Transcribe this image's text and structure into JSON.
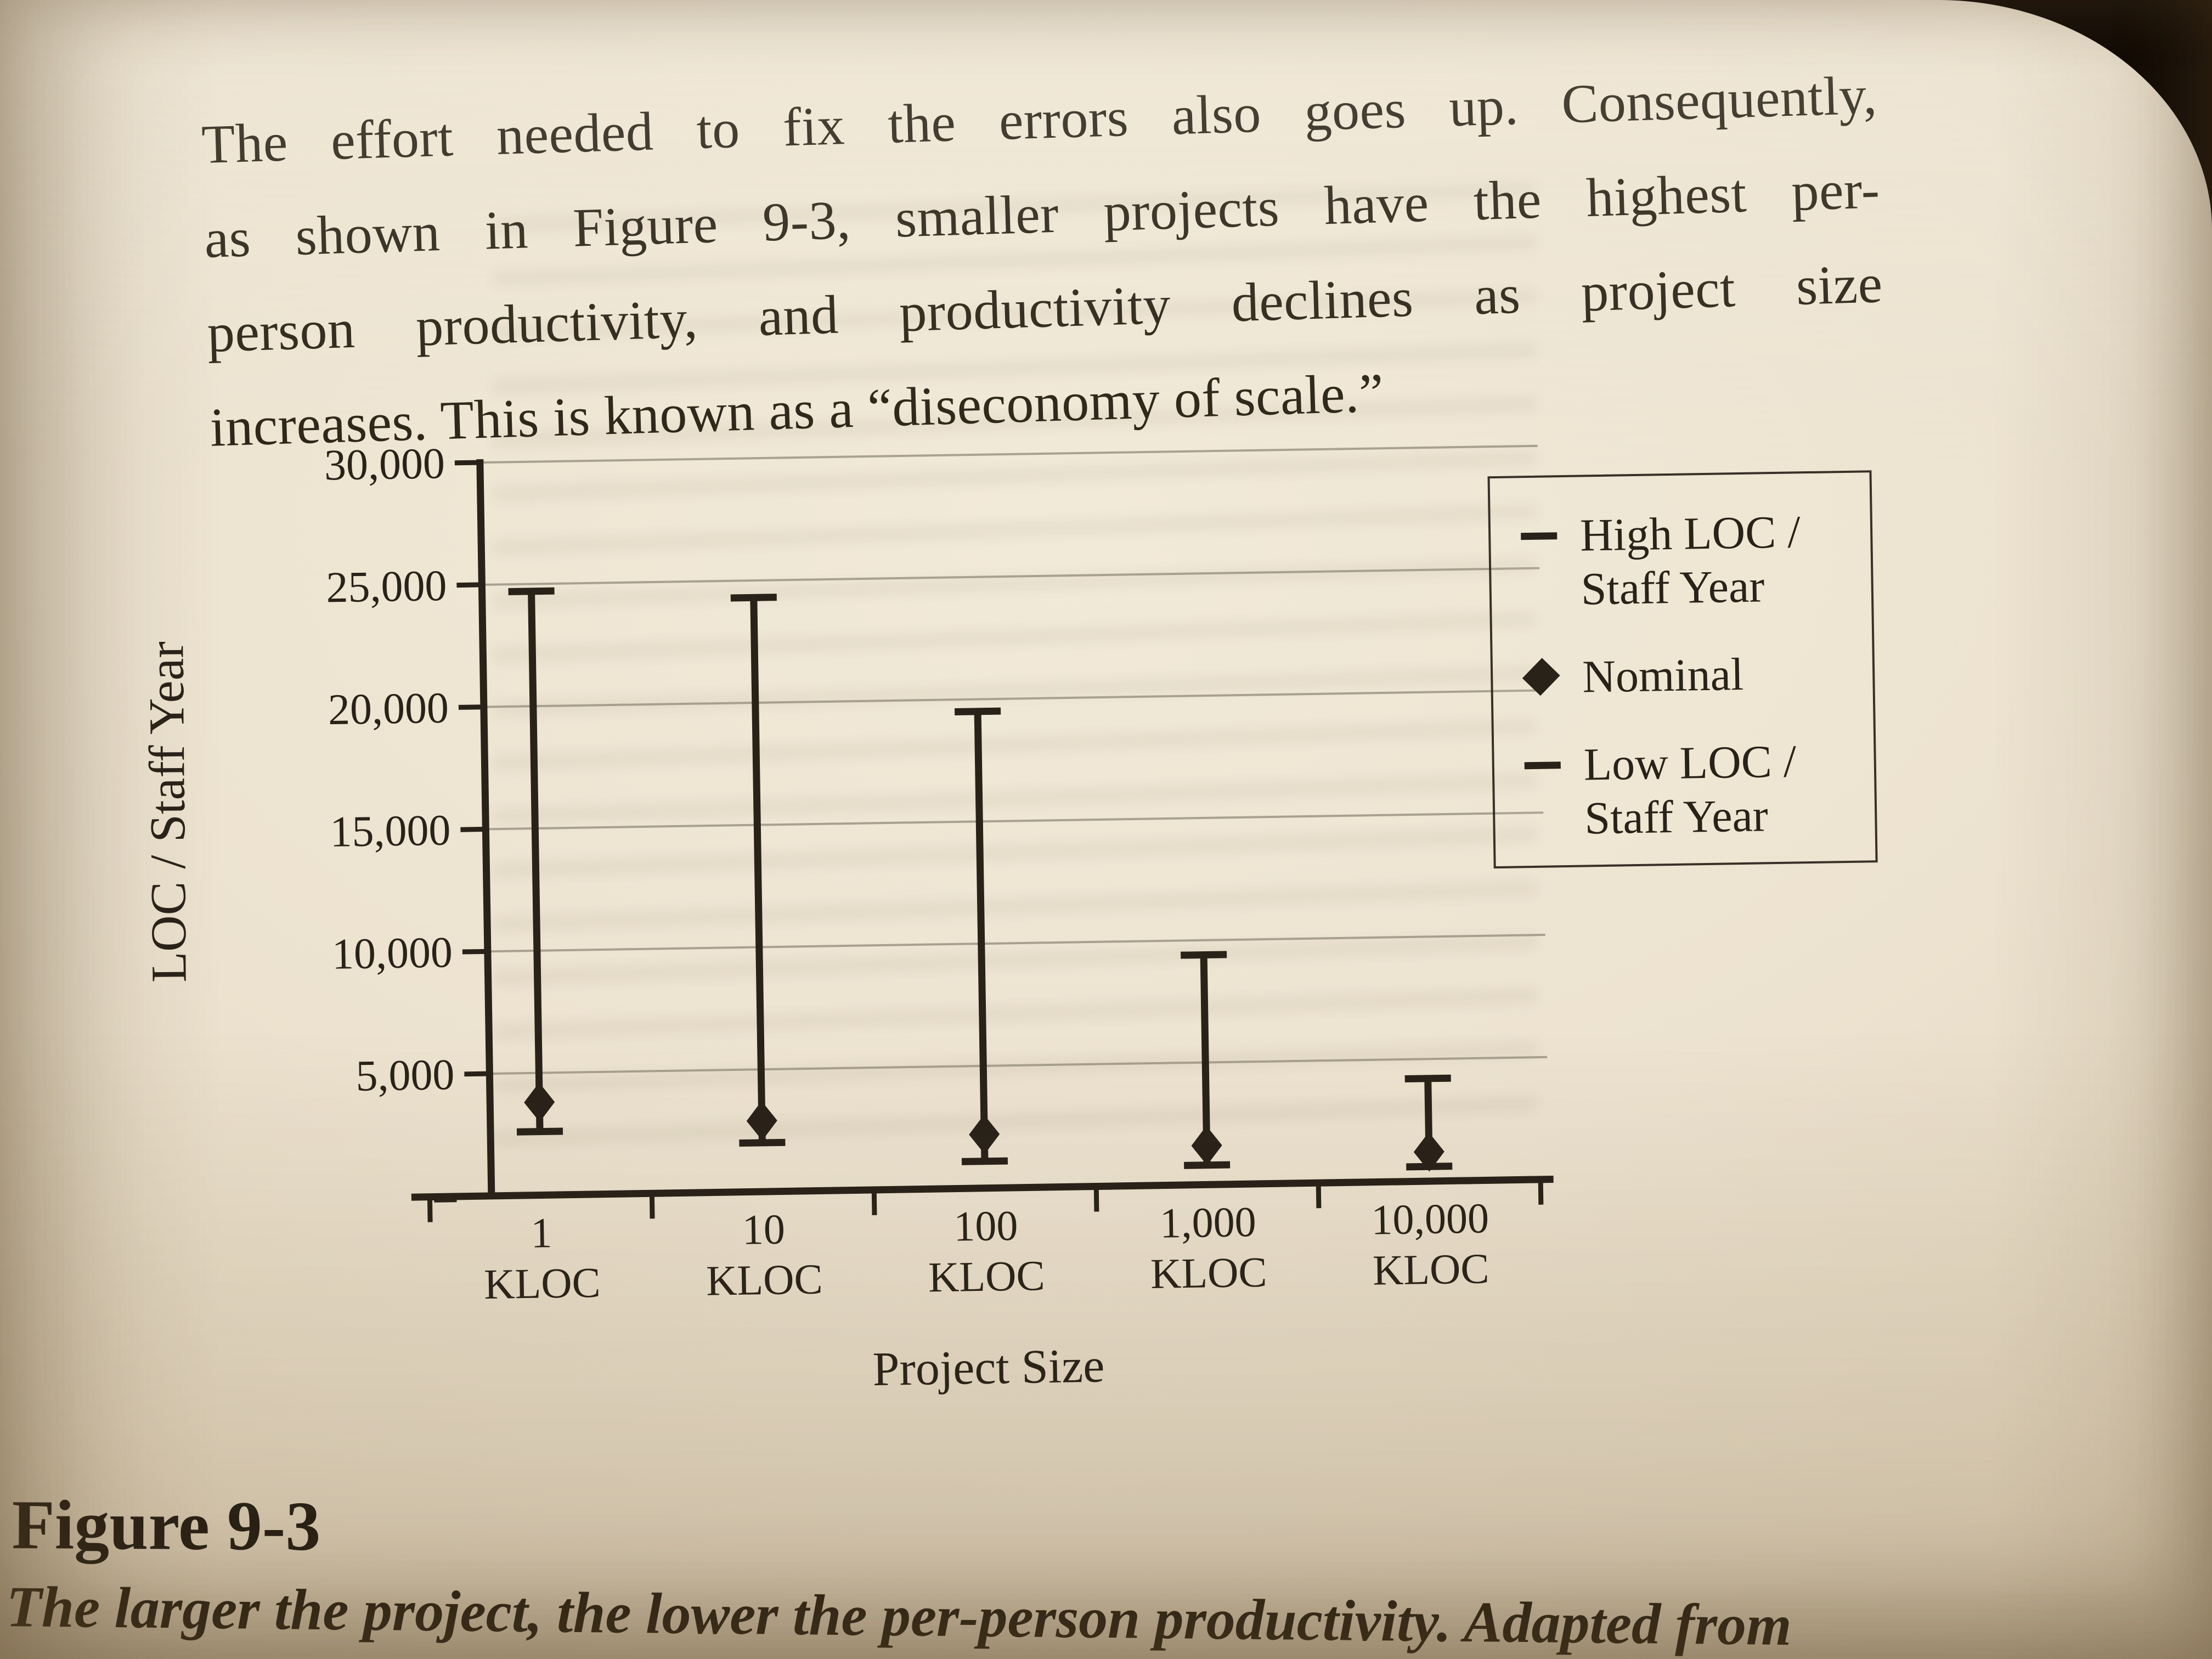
{
  "page": {
    "paragraph": {
      "lines": [
        "The effort needed to fix the errors also goes up. Consequently,",
        "as shown in Figure 9-3, smaller projects have the highest per-",
        "person productivity, and productivity declines as project size",
        "increases. This is known as a “diseconomy of scale.”"
      ]
    },
    "figure_label": "Figure 9-3",
    "caption": "The larger the project, the lower the per-person productivity. Adapted from"
  },
  "chart_data": {
    "type": "range-bar",
    "title": "",
    "xlabel": "Project Size",
    "ylabel": "LOC / Staff Year",
    "ylim": [
      0,
      30000
    ],
    "ytick_interval": 5000,
    "ytick_labels_top_to_bottom": [
      "30,000",
      "25,000",
      "20,000",
      "15,000",
      "10,000",
      "5,000",
      "–"
    ],
    "grid": true,
    "legend_position": "right",
    "categories": [
      [
        "1",
        "KLOC"
      ],
      [
        "10",
        "KLOC"
      ],
      [
        "100",
        "KLOC"
      ],
      [
        "1,000",
        "KLOC"
      ],
      [
        "10,000",
        "KLOC"
      ]
    ],
    "series": [
      {
        "name": "High LOC / Staff Year",
        "marker": "dash",
        "values": [
          24700,
          24300,
          19500,
          9400,
          4200
        ]
      },
      {
        "name": "Nominal",
        "marker": "diamond",
        "values": [
          3800,
          2900,
          2200,
          1600,
          1200
        ]
      },
      {
        "name": "Low LOC / Staff Year",
        "marker": "dash",
        "values": [
          2600,
          2000,
          1100,
          800,
          600
        ]
      }
    ],
    "legend": {
      "items": [
        {
          "marker": "dash",
          "label_lines": [
            "High LOC /",
            "Staff Year"
          ]
        },
        {
          "marker": "diamond",
          "label_lines": [
            "Nominal"
          ]
        },
        {
          "marker": "dash",
          "label_lines": [
            "Low LOC /",
            "Staff Year"
          ]
        }
      ]
    }
  },
  "colors": {
    "ink": "#292219",
    "paper": "#ece2cf",
    "grid": "#98917f",
    "corner_dark": "#1d130a"
  }
}
